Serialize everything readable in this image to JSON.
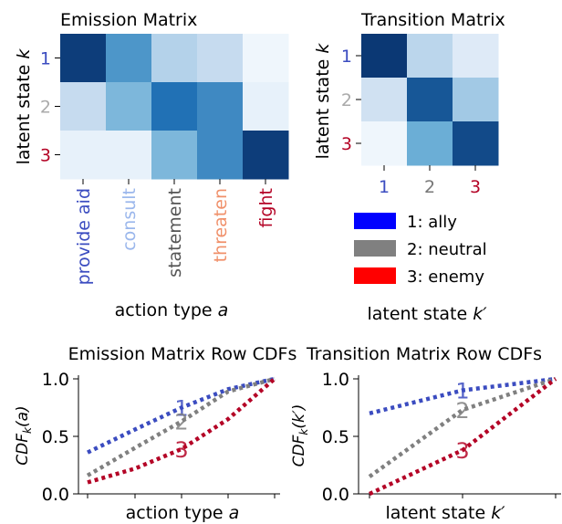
{
  "chart_data": [
    {
      "type": "heatmap",
      "title": "Emission Matrix",
      "xlabel": "action type a",
      "ylabel": "latent state k",
      "x_ticks": [
        "provide aid",
        "consult",
        "statement",
        "threaten",
        "fight"
      ],
      "x_tick_colors": [
        "#3b4cc0",
        "#9bb7ec",
        "#555555",
        "#f0906a",
        "#b40426"
      ],
      "y_ticks": [
        "1",
        "2",
        "3"
      ],
      "y_tick_colors": [
        "#3b4cc0",
        "#aaaaaa",
        "#b40426"
      ],
      "colormap": "Blues",
      "values": [
        [
          0.95,
          0.6,
          0.3,
          0.25,
          0.04
        ],
        [
          0.25,
          0.45,
          0.75,
          0.65,
          0.08
        ],
        [
          0.08,
          0.08,
          0.45,
          0.65,
          0.95
        ]
      ]
    },
    {
      "type": "heatmap",
      "title": "Transition Matrix",
      "xlabel": "latent state k′",
      "ylabel": "latent state k",
      "x_ticks": [
        "1",
        "2",
        "3"
      ],
      "x_tick_colors": [
        "#3b4cc0",
        "#777777",
        "#b40426"
      ],
      "y_ticks": [
        "1",
        "2",
        "3"
      ],
      "y_tick_colors": [
        "#3b4cc0",
        "#aaaaaa",
        "#b40426"
      ],
      "colormap": "Blues",
      "values": [
        [
          0.97,
          0.28,
          0.13
        ],
        [
          0.2,
          0.85,
          0.35
        ],
        [
          0.04,
          0.5,
          0.9
        ]
      ],
      "legend": [
        {
          "label": "1: ally",
          "color": "#0000ff"
        },
        {
          "label": "2: neutral",
          "color": "#808080"
        },
        {
          "label": "3: enemy",
          "color": "#ff0000"
        }
      ]
    },
    {
      "type": "line",
      "title": "Emission Matrix Row CDFs",
      "xlabel": "action type a",
      "ylabel": "CDF_k(a)",
      "ylim": [
        0.0,
        1.0
      ],
      "y_ticks": [
        "0.0",
        "0.5",
        "1.0"
      ],
      "x": [
        1,
        2,
        3,
        4,
        5
      ],
      "series": [
        {
          "name": "1",
          "color": "#3b4cc0",
          "values": [
            0.36,
            0.56,
            0.75,
            0.91,
            1.0
          ]
        },
        {
          "name": "2",
          "color": "#808080",
          "values": [
            0.16,
            0.4,
            0.63,
            0.89,
            1.0
          ]
        },
        {
          "name": "3",
          "color": "#b40426",
          "values": [
            0.1,
            0.22,
            0.39,
            0.65,
            1.0
          ]
        }
      ]
    },
    {
      "type": "line",
      "title": "Transition Matrix Row CDFs",
      "xlabel": "latent state k′",
      "ylabel": "CDF_k(k′)",
      "ylim": [
        0.0,
        1.0
      ],
      "y_ticks": [
        "0.0",
        "0.5",
        "1.0"
      ],
      "x": [
        1,
        2,
        3
      ],
      "series": [
        {
          "name": "1",
          "color": "#3b4cc0",
          "values": [
            0.7,
            0.9,
            1.0
          ]
        },
        {
          "name": "2",
          "color": "#808080",
          "values": [
            0.15,
            0.73,
            1.0
          ]
        },
        {
          "name": "3",
          "color": "#b40426",
          "values": [
            0.0,
            0.38,
            1.0
          ]
        }
      ]
    }
  ]
}
